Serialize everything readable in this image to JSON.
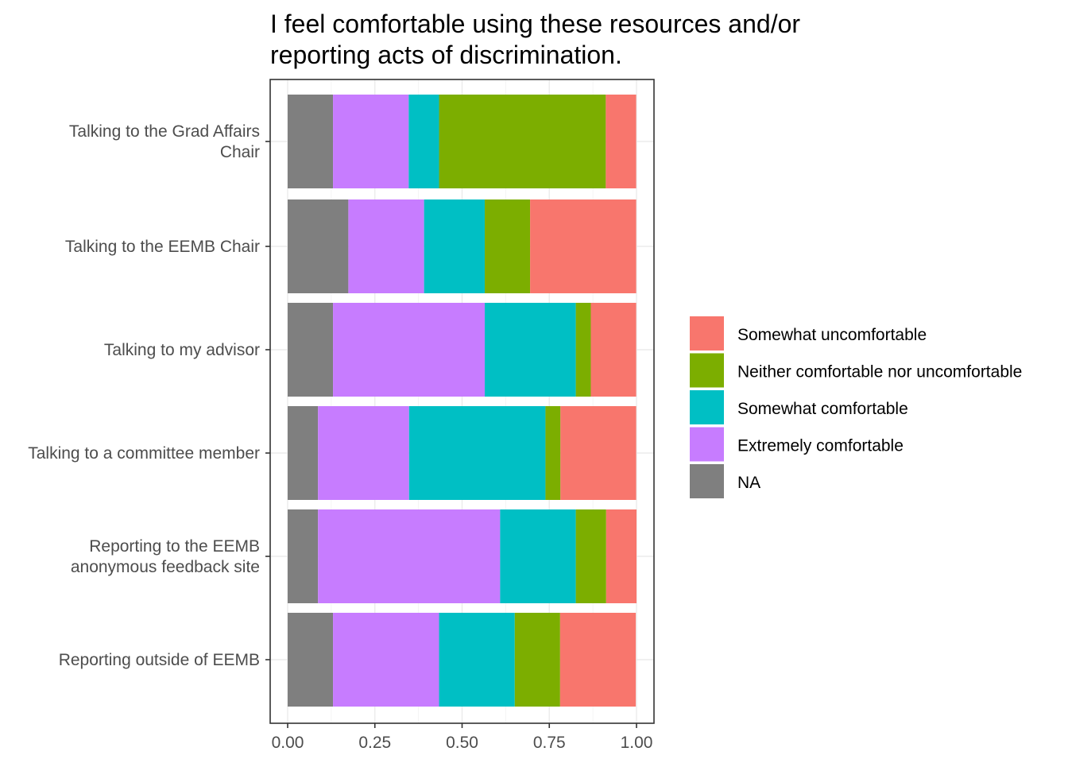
{
  "chart_data": {
    "type": "bar",
    "orientation": "horizontal",
    "stacked": true,
    "title": "I feel comfortable using these resources and/or reporting acts of discrimination.",
    "title_lines": [
      "I feel comfortable using these resources and/or",
      "reporting acts of discrimination."
    ],
    "xlabel": "",
    "ylabel": "",
    "xlim": [
      0,
      1
    ],
    "x_ticks": [
      "0.00",
      "0.25",
      "0.50",
      "0.75",
      "1.00"
    ],
    "x_tick_values": [
      0,
      0.25,
      0.5,
      0.75,
      1.0
    ],
    "grid": true,
    "legend_position": "right",
    "categories": [
      "Talking to the Grad Affairs Chair",
      "Talking to the EEMB Chair",
      "Talking to my advisor",
      "Talking to a committee member",
      "Reporting to the EEMB anonymous feedback site",
      "Reporting outside of EEMB"
    ],
    "category_label_lines": [
      [
        "Talking to the Grad Affairs",
        "Chair"
      ],
      [
        "Talking to the EEMB Chair"
      ],
      [
        "Talking to my advisor"
      ],
      [
        "Talking to a committee member"
      ],
      [
        "Reporting to the EEMB",
        "anonymous feedback site"
      ],
      [
        "Reporting outside of EEMB"
      ]
    ],
    "series": [
      {
        "name": "NA",
        "color": "#7f7f7f",
        "values": [
          0.13,
          0.174,
          0.13,
          0.087,
          0.087,
          0.13
        ]
      },
      {
        "name": "Extremely comfortable",
        "color": "#c77cff",
        "values": [
          0.217,
          0.217,
          0.435,
          0.261,
          0.522,
          0.304
        ]
      },
      {
        "name": "Somewhat comfortable",
        "color": "#00bfc4",
        "values": [
          0.087,
          0.174,
          0.261,
          0.391,
          0.217,
          0.217
        ]
      },
      {
        "name": "Neither comfortable nor uncomfortable",
        "color": "#7cae00",
        "values": [
          0.478,
          0.13,
          0.043,
          0.043,
          0.087,
          0.13
        ]
      },
      {
        "name": "Somewhat uncomfortable",
        "color": "#f8766d",
        "values": [
          0.087,
          0.304,
          0.13,
          0.217,
          0.087,
          0.217
        ]
      }
    ],
    "legend_order": [
      "Somewhat uncomfortable",
      "Neither comfortable nor uncomfortable",
      "Somewhat comfortable",
      "Extremely comfortable",
      "NA"
    ]
  }
}
